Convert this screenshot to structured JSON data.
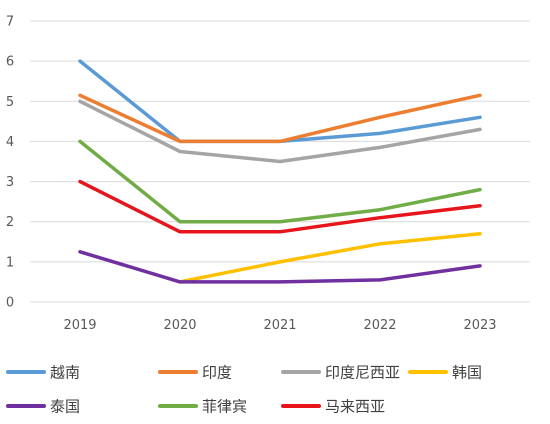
{
  "chart_data": {
    "type": "line",
    "title": "",
    "xlabel": "",
    "ylabel": "",
    "x": [
      "2019",
      "2020",
      "2021",
      "2022",
      "2023"
    ],
    "ylim": [
      0,
      7
    ],
    "yticks": [
      "0",
      "1",
      "2",
      "3",
      "4",
      "5",
      "6",
      "7"
    ],
    "grid": true,
    "legend": "bottom",
    "series": [
      {
        "name": "越南",
        "color": "#5b9bd5",
        "values": [
          6.0,
          4.0,
          4.0,
          4.2,
          4.6
        ]
      },
      {
        "name": "印度",
        "color": "#ed7d31",
        "values": [
          5.15,
          4.0,
          4.0,
          4.6,
          5.15
        ]
      },
      {
        "name": "印度尼西亚",
        "color": "#a5a5a5",
        "values": [
          5.0,
          3.75,
          3.5,
          3.85,
          4.3
        ]
      },
      {
        "name": "韩国",
        "color": "#ffc000",
        "values": [
          null,
          0.5,
          1.0,
          1.45,
          1.7
        ]
      },
      {
        "name": "泰国",
        "color": "#7030a0",
        "values": [
          1.25,
          0.5,
          0.5,
          0.55,
          0.9
        ]
      },
      {
        "name": "菲律宾",
        "color": "#70ad47",
        "values": [
          4.0,
          2.0,
          2.0,
          2.3,
          2.8
        ]
      },
      {
        "name": "马来西亚",
        "color": "#e8141c",
        "values": [
          3.0,
          1.75,
          1.75,
          2.1,
          2.4
        ]
      }
    ]
  }
}
